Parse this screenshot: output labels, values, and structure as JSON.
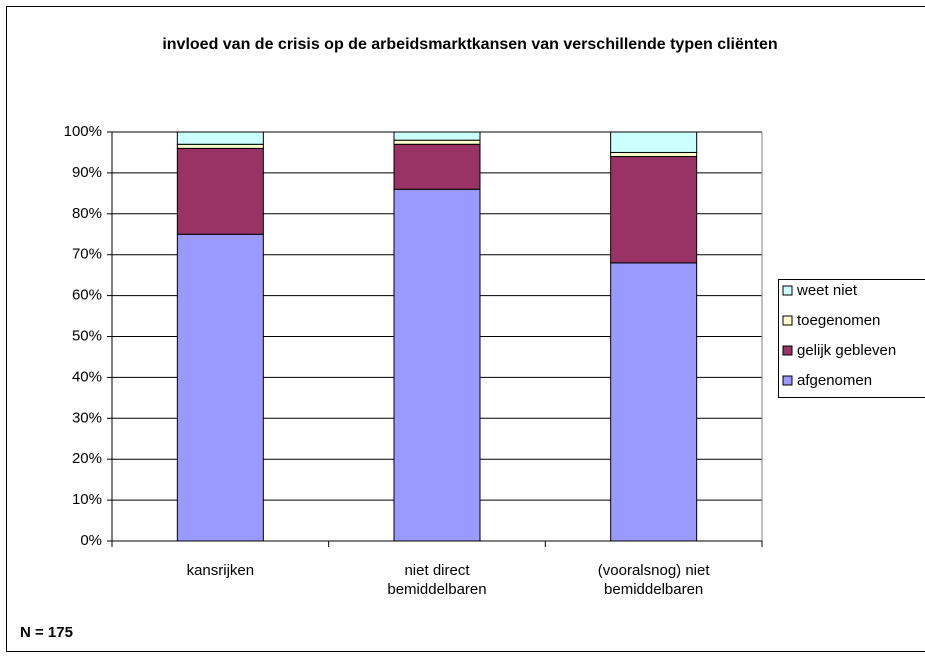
{
  "chart_data": {
    "type": "stacked_bar",
    "title": "invloed van de crisis op de arbeidsmarktkansen van verschillende typen cliënten",
    "categories": [
      "kansrijken",
      "niet direct bemiddelbaren",
      "(vooralsnog) niet bemiddelbaren"
    ],
    "series": [
      {
        "name": "afgenomen",
        "color": "#9999ff",
        "values": [
          75,
          86,
          68
        ]
      },
      {
        "name": "gelijk gebleven",
        "color": "#993366",
        "values": [
          21,
          11,
          26
        ]
      },
      {
        "name": "toegenomen",
        "color": "#ffffcc",
        "values": [
          1,
          1,
          1
        ]
      },
      {
        "name": "weet niet",
        "color": "#ccffff",
        "values": [
          3,
          2,
          5
        ]
      }
    ],
    "ylim": [
      0,
      100
    ],
    "yticks": [
      {
        "value": 0,
        "label": "0%"
      },
      {
        "value": 10,
        "label": "10%"
      },
      {
        "value": 20,
        "label": "20%"
      },
      {
        "value": 30,
        "label": "30%"
      },
      {
        "value": 40,
        "label": "40%"
      },
      {
        "value": 50,
        "label": "50%"
      },
      {
        "value": 60,
        "label": "60%"
      },
      {
        "value": 70,
        "label": "70%"
      },
      {
        "value": 80,
        "label": "80%"
      },
      {
        "value": 90,
        "label": "90%"
      },
      {
        "value": 100,
        "label": "100%"
      }
    ],
    "grid": true,
    "legend": "right",
    "annotation": "N = 175"
  }
}
